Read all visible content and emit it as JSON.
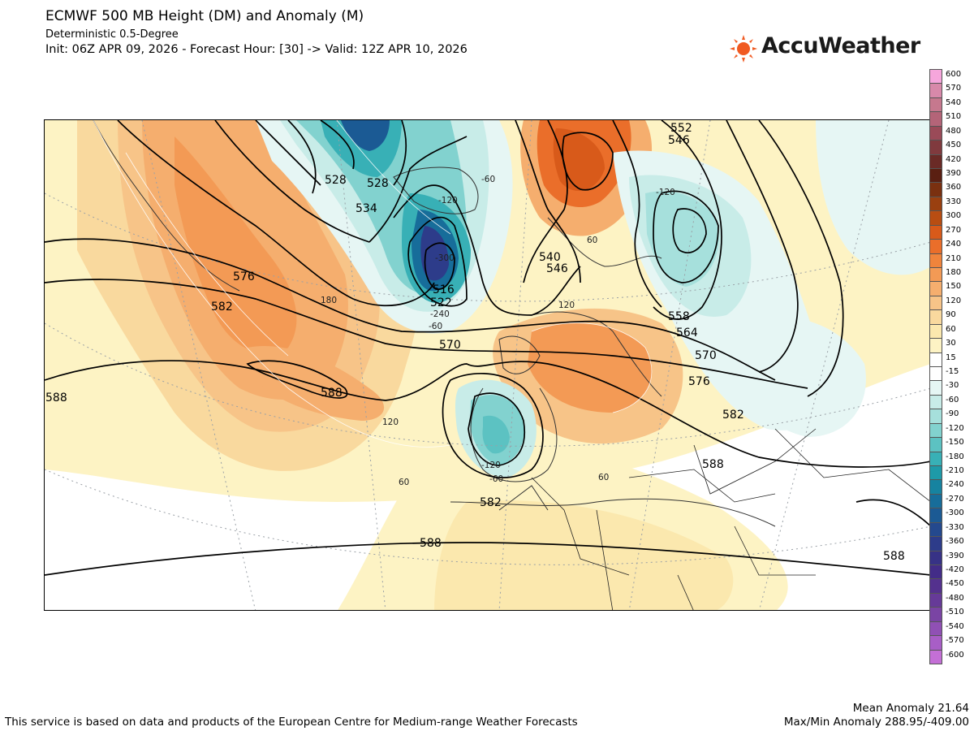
{
  "header": {
    "title": "ECMWF 500 MB Height (DM) and Anomaly (M)",
    "subtitle": "Deterministic 0.5-Degree",
    "init_line": "Init: 06Z APR 09, 2026 - Forecast Hour: [30] -> Valid: 12Z APR 10, 2026"
  },
  "logo": {
    "text": "AccuWeather",
    "icon": "sun-icon",
    "color": "#f05a22"
  },
  "legend": {
    "labels": [
      "600",
      "570",
      "540",
      "510",
      "480",
      "450",
      "420",
      "390",
      "360",
      "330",
      "300",
      "270",
      "240",
      "210",
      "180",
      "150",
      "120",
      "90",
      "60",
      "30",
      "15",
      "-15",
      "-30",
      "-60",
      "-90",
      "-120",
      "-150",
      "-180",
      "-210",
      "-240",
      "-270",
      "-300",
      "-330",
      "-360",
      "-390",
      "-420",
      "-450",
      "-480",
      "-510",
      "-540",
      "-570",
      "-600"
    ],
    "colors": [
      "#f6a6dc",
      "#d889aa",
      "#c6788e",
      "#b46478",
      "#9a4a58",
      "#803a3e",
      "#6a2a26",
      "#5a1f12",
      "#7a3010",
      "#9a4010",
      "#b84d12",
      "#d85a1a",
      "#ea6e2a",
      "#f0843c",
      "#f39a55",
      "#f5ae6e",
      "#f7c488",
      "#f9d99e",
      "#fbe8ae",
      "#fdf3c4",
      "#ffffff",
      "#ffffff",
      "#e6f6f4",
      "#c8ece8",
      "#a6e0dc",
      "#82d2cf",
      "#5cc2c2",
      "#38b0b6",
      "#1e9aa8",
      "#1683a0",
      "#176d9a",
      "#1b5a94",
      "#24498e",
      "#2d3c8a",
      "#373286",
      "#432c88",
      "#54318e",
      "#663a98",
      "#7a44a4",
      "#9050b4",
      "#a85ec6",
      "#c46fd6"
    ]
  },
  "map": {
    "height_contours": [
      "516",
      "522",
      "528",
      "534",
      "540",
      "546",
      "552",
      "558",
      "564",
      "570",
      "576",
      "582",
      "588"
    ],
    "anomaly_labels": [
      "-300",
      "-240",
      "-120",
      "-60",
      "60",
      "120",
      "180"
    ]
  },
  "footer": {
    "credit": "This service is based on data and products of the European Centre for Medium-range Weather Forecasts",
    "mean_anomaly": "Mean Anomaly 21.64",
    "maxmin_anomaly": "Max/Min Anomaly 288.95/-409.00"
  }
}
